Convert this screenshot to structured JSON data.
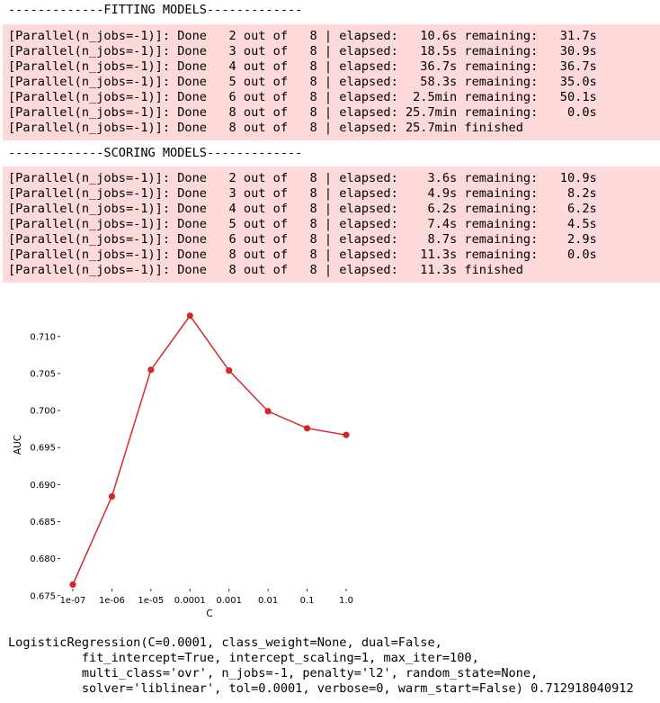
{
  "fitting": {
    "header": "-------------FITTING MODELS-------------",
    "lines": [
      "[Parallel(n_jobs=-1)]: Done   2 out of   8 | elapsed:   10.6s remaining:   31.7s",
      "[Parallel(n_jobs=-1)]: Done   3 out of   8 | elapsed:   18.5s remaining:   30.9s",
      "[Parallel(n_jobs=-1)]: Done   4 out of   8 | elapsed:   36.7s remaining:   36.7s",
      "[Parallel(n_jobs=-1)]: Done   5 out of   8 | elapsed:   58.3s remaining:   35.0s",
      "[Parallel(n_jobs=-1)]: Done   6 out of   8 | elapsed:  2.5min remaining:   50.1s",
      "[Parallel(n_jobs=-1)]: Done   8 out of   8 | elapsed: 25.7min remaining:    0.0s",
      "[Parallel(n_jobs=-1)]: Done   8 out of   8 | elapsed: 25.7min finished"
    ]
  },
  "scoring": {
    "header": "-------------SCORING MODELS-------------",
    "lines": [
      "[Parallel(n_jobs=-1)]: Done   2 out of   8 | elapsed:    3.6s remaining:   10.9s",
      "[Parallel(n_jobs=-1)]: Done   3 out of   8 | elapsed:    4.9s remaining:    8.2s",
      "[Parallel(n_jobs=-1)]: Done   4 out of   8 | elapsed:    6.2s remaining:    6.2s",
      "[Parallel(n_jobs=-1)]: Done   5 out of   8 | elapsed:    7.4s remaining:    4.5s",
      "[Parallel(n_jobs=-1)]: Done   6 out of   8 | elapsed:    8.7s remaining:    2.9s",
      "[Parallel(n_jobs=-1)]: Done   8 out of   8 | elapsed:   11.3s remaining:    0.0s",
      "[Parallel(n_jobs=-1)]: Done   8 out of   8 | elapsed:   11.3s finished"
    ]
  },
  "colors": {
    "stderr_bg": "#fdd9d9",
    "line_color": "#d62728"
  },
  "chart_data": {
    "type": "line",
    "title": "",
    "xlabel": "C",
    "ylabel": "AUC",
    "x": [
      "1e-07",
      "1e-06",
      "1e-05",
      "0.0001",
      "0.001",
      "0.01",
      "0.1",
      "1.0"
    ],
    "values": [
      0.6765,
      0.6884,
      0.7055,
      0.7128,
      0.7054,
      0.6999,
      0.6976,
      0.6967
    ],
    "ylim": [
      0.674,
      0.7135
    ],
    "yticks": [
      "0.675",
      "0.680",
      "0.685",
      "0.690",
      "0.695",
      "0.700",
      "0.705",
      "0.710"
    ],
    "grid": false,
    "legend": "none"
  },
  "output": {
    "lines": [
      "LogisticRegression(C=0.0001, class_weight=None, dual=False,",
      "          fit_intercept=True, intercept_scaling=1, max_iter=100,",
      "          multi_class='ovr', n_jobs=-1, penalty='l2', random_state=None,",
      "          solver='liblinear', tol=0.0001, verbose=0, warm_start=False) 0.712918040912"
    ]
  }
}
